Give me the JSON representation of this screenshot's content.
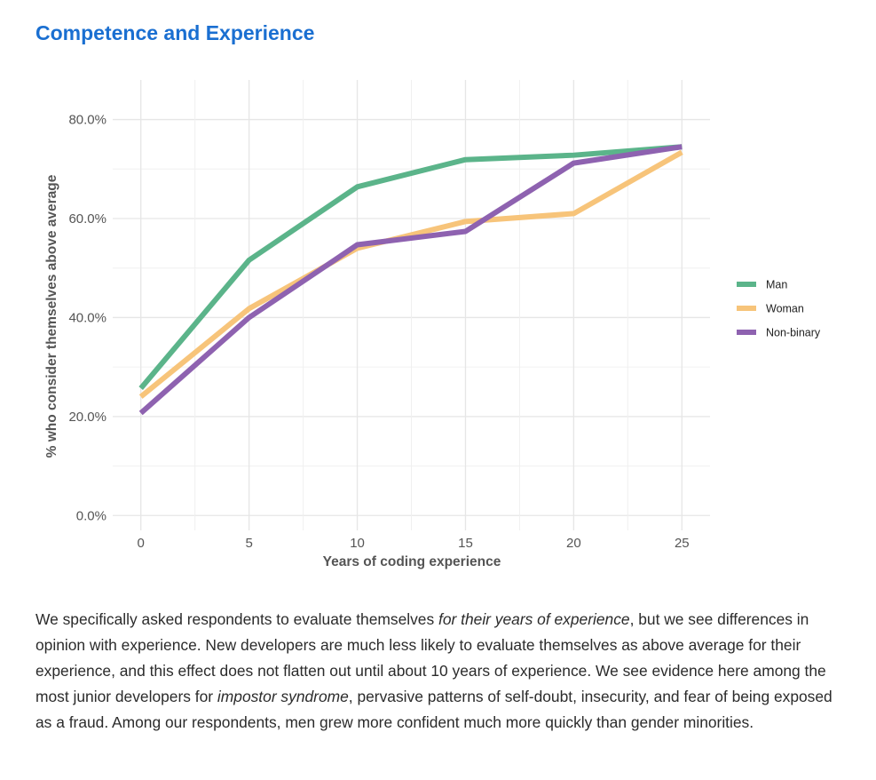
{
  "page": {
    "title": "Competence and Experience",
    "paragraph": [
      {
        "text": "We specifically asked respondents to evaluate themselves ",
        "italic": false
      },
      {
        "text": "for their years of experience",
        "italic": true
      },
      {
        "text": ", but we see differences in opinion with experience. New developers are much less likely to evaluate themselves as above average for their experience, and this effect does not flatten out until about 10 years of experience. We see evidence here among the most junior developers for ",
        "italic": false
      },
      {
        "text": "impostor syndrome",
        "italic": true
      },
      {
        "text": ", pervasive patterns of self-doubt, insecurity, and fear of being exposed as a fraud. Among our respondents, men grew more confident much more quickly than gender minorities.",
        "italic": false
      }
    ]
  },
  "chart_data": {
    "type": "line",
    "title": "Competence and Experience",
    "xlabel": "Years of coding experience",
    "ylabel": "% who consider themselves above average",
    "x": [
      0,
      5,
      10,
      15,
      20,
      25
    ],
    "xlim": [
      -1.3,
      26.3
    ],
    "ylim": [
      -3,
      88
    ],
    "x_ticks": [
      0,
      5,
      10,
      15,
      20,
      25
    ],
    "x_tick_labels": [
      "0",
      "5",
      "10",
      "15",
      "20",
      "25"
    ],
    "y_ticks": [
      0,
      20,
      40,
      60,
      80
    ],
    "y_tick_labels": [
      "0.0%",
      "20.0%",
      "40.0%",
      "60.0%",
      "80.0%"
    ],
    "grid": true,
    "legend_position": "right",
    "series": [
      {
        "name": "Man",
        "color": "#5bb48a",
        "values": [
          25.7,
          51.6,
          66.4,
          71.9,
          72.8,
          74.5
        ]
      },
      {
        "name": "Woman",
        "color": "#f7c47a",
        "values": [
          24.0,
          41.8,
          54.0,
          59.4,
          61.0,
          73.4
        ]
      },
      {
        "name": "Non-binary",
        "color": "#8e62b0",
        "values": [
          20.7,
          40.0,
          54.7,
          57.4,
          71.2,
          74.5
        ]
      }
    ]
  }
}
